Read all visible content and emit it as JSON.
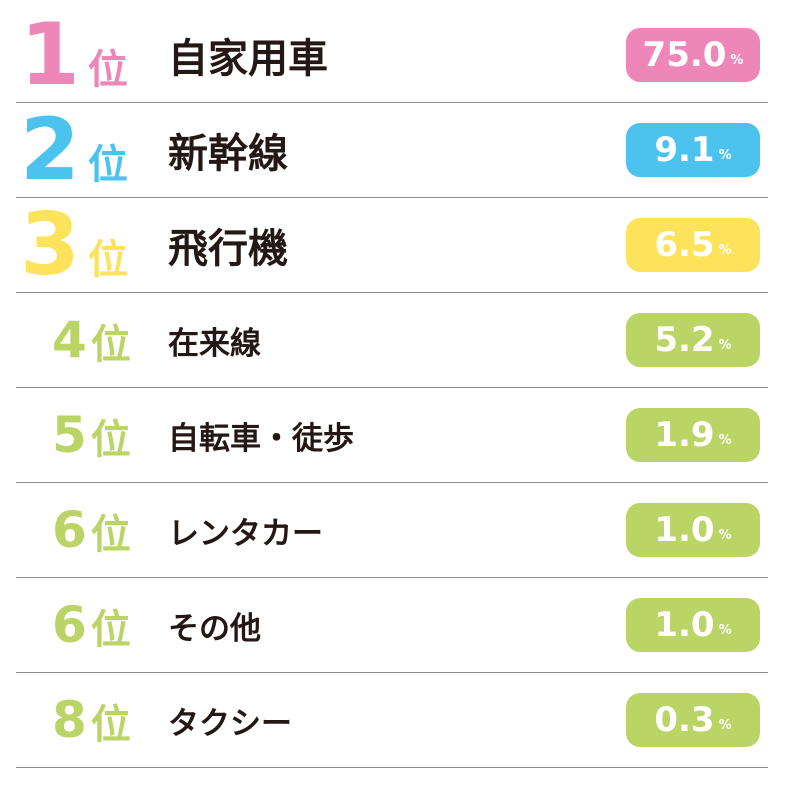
{
  "colors": {
    "rank1": "#ee87b8",
    "rank2": "#4cc2ef",
    "rank3": "#fde35c",
    "other": "#bad465",
    "text": "#231815",
    "divider": "#8c8c8c"
  },
  "chart_data": {
    "type": "table",
    "unit": "%",
    "rank_suffix": "位",
    "rows": [
      {
        "rank": "1",
        "label": "自家用車",
        "value": 75.0,
        "value_text": "75.0",
        "unit": "%",
        "color": "#ee87b8"
      },
      {
        "rank": "2",
        "label": "新幹線",
        "value": 9.1,
        "value_text": "9.1",
        "unit": "%",
        "color": "#4cc2ef"
      },
      {
        "rank": "3",
        "label": "飛行機",
        "value": 6.5,
        "value_text": "6.5",
        "unit": "%",
        "color": "#fde35c"
      },
      {
        "rank": "4",
        "label": "在来線",
        "value": 5.2,
        "value_text": "5.2",
        "unit": "%",
        "color": "#bad465"
      },
      {
        "rank": "5",
        "label": "自転車・徒歩",
        "value": 1.9,
        "value_text": "1.9",
        "unit": "%",
        "color": "#bad465"
      },
      {
        "rank": "6",
        "label": "レンタカー",
        "value": 1.0,
        "value_text": "1.0",
        "unit": "%",
        "color": "#bad465"
      },
      {
        "rank": "6",
        "label": "その他",
        "value": 1.0,
        "value_text": "1.0",
        "unit": "%",
        "color": "#bad465"
      },
      {
        "rank": "8",
        "label": "タクシー",
        "value": 0.3,
        "value_text": "0.3",
        "unit": "%",
        "color": "#bad465"
      }
    ]
  }
}
